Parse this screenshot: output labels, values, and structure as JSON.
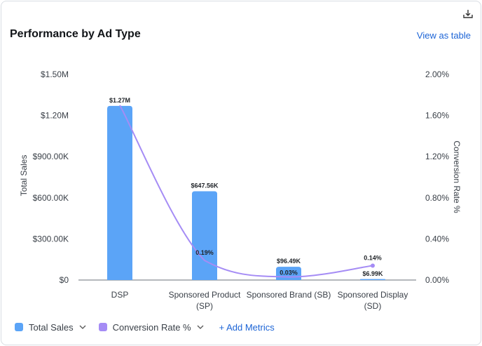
{
  "header": {
    "title": "Performance by Ad Type",
    "view_as_table": "View as table",
    "download_icon": "download-icon"
  },
  "legend": {
    "items": [
      {
        "label": "Total Sales",
        "color": "#5ba4f7",
        "icon": "chevron-down-icon"
      },
      {
        "label": "Conversion Rate %",
        "color": "#a58cf5",
        "icon": "chevron-down-icon"
      }
    ],
    "add_metrics": "+ Add Metrics"
  },
  "chart_data": {
    "type": "bar",
    "categories": [
      [
        "DSP"
      ],
      [
        "Sponsored Product",
        "(SP)"
      ],
      [
        "Sponsored Brand (SB)"
      ],
      [
        "Sponsored Display",
        "(SD)"
      ]
    ],
    "series": [
      {
        "name": "Total Sales",
        "kind": "bar",
        "axis": "left",
        "color": "#5ba4f7",
        "values": [
          1270000,
          647560,
          96490,
          6990
        ],
        "labels": [
          "$1.27M",
          "$647.56K",
          "$96.49K",
          "$6.99K"
        ]
      },
      {
        "name": "Conversion Rate %",
        "kind": "line",
        "axis": "right",
        "color": "#a58cf5",
        "values": [
          1.7,
          0.19,
          0.03,
          0.14
        ],
        "labels": [
          "",
          "0.19%",
          "0.03%",
          "0.14%"
        ]
      }
    ],
    "ylabel": "Total Sales",
    "y2label": "Conversion Rate %",
    "ylim": [
      0,
      1500000
    ],
    "y2lim": [
      0,
      2.0
    ],
    "yticks": [
      "$0",
      "$300.00K",
      "$600.00K",
      "$900.00K",
      "$1.20M",
      "$1.50M"
    ],
    "y2ticks": [
      "0.00%",
      "0.40%",
      "0.80%",
      "1.20%",
      "1.60%",
      "2.00%"
    ],
    "grid": false,
    "legend_position": "bottom-left"
  }
}
